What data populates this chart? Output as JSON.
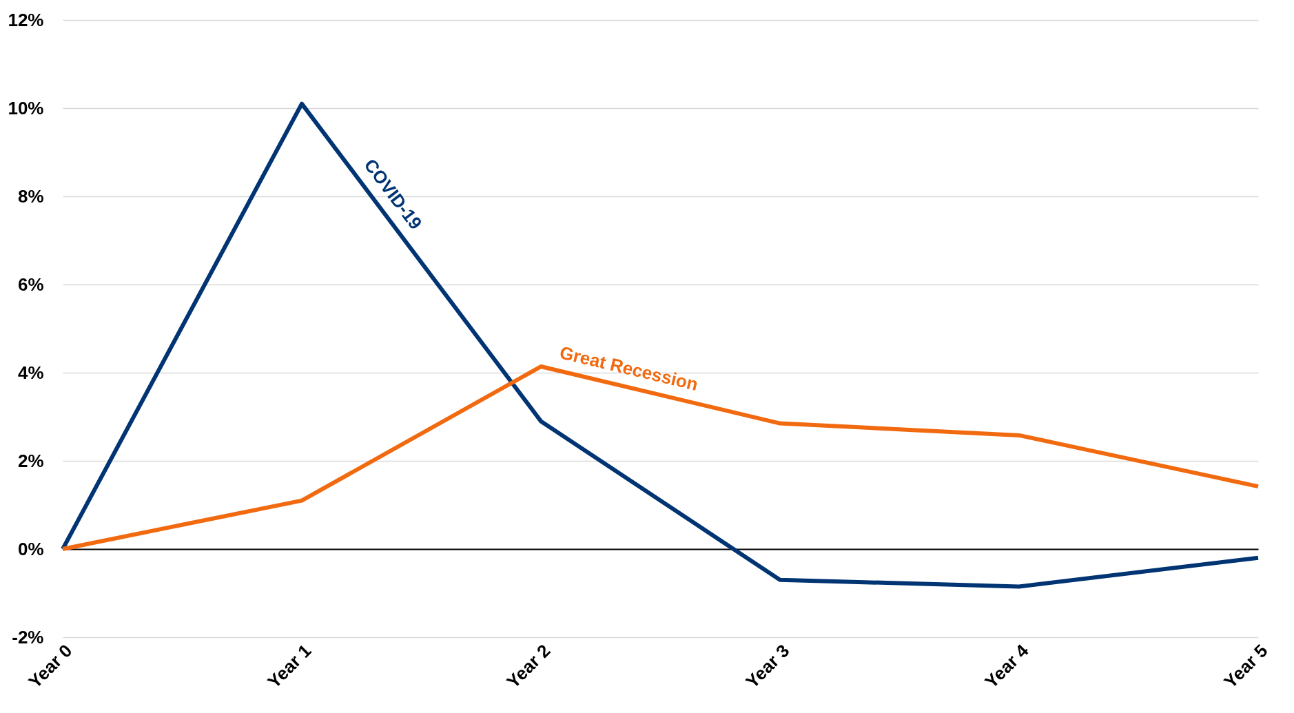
{
  "chart_data": {
    "type": "line",
    "categories": [
      "Year 0",
      "Year 1",
      "Year 2",
      "Year 3",
      "Year 4",
      "Year 5"
    ],
    "series": [
      {
        "name": "COVID-19",
        "color": "#003473",
        "values": [
          0,
          10.1,
          2.9,
          -0.7,
          -0.85,
          -0.2
        ]
      },
      {
        "name": "Great Recession",
        "color": "#f26a10",
        "values": [
          0,
          1.1,
          4.14,
          2.85,
          2.58,
          1.42
        ]
      }
    ],
    "ylim": [
      -2,
      12
    ],
    "yticks": [
      {
        "value": -2,
        "label": "-2%"
      },
      {
        "value": 0,
        "label": "0%"
      },
      {
        "value": 2,
        "label": "2%"
      },
      {
        "value": 4,
        "label": "4%"
      },
      {
        "value": 6,
        "label": "6%"
      },
      {
        "value": 8,
        "label": "8%"
      },
      {
        "value": 10,
        "label": "10%"
      },
      {
        "value": 12,
        "label": "12%"
      }
    ],
    "grid": "y",
    "legend": false,
    "marker": "none",
    "line_style": "solid"
  }
}
